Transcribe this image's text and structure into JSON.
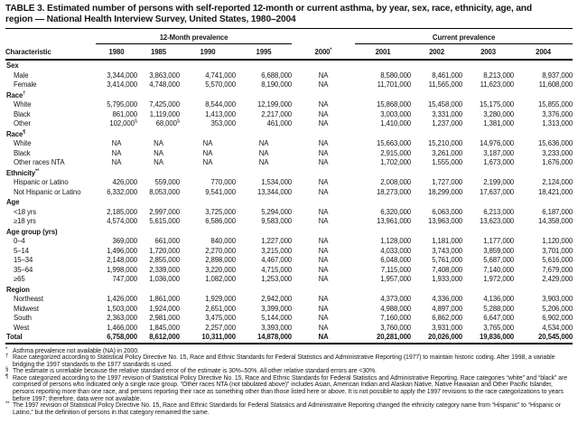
{
  "title": {
    "line1": "TABLE 3. Estimated number of persons with self-reported 12-month or current asthma, by year, sex, race, ethnicity, age, and",
    "line2": "region — National Health Interview Survey, United States, 1980–2004"
  },
  "table": {
    "characteristic_header": "Characteristic",
    "group_12month": "12-Month prevalence",
    "group_current": "Current prevalence",
    "year_headers": [
      {
        "label": "1980"
      },
      {
        "label": "1985"
      },
      {
        "label": "1990"
      },
      {
        "label": "1995"
      },
      {
        "label": "2000",
        "sup": "*"
      },
      {
        "label": "2001"
      },
      {
        "label": "2002"
      },
      {
        "label": "2003"
      },
      {
        "label": "2004"
      }
    ],
    "rows": [
      {
        "type": "group",
        "label": "Sex"
      },
      {
        "type": "data",
        "label": "Male",
        "values": [
          "3,344,000",
          "3,863,000",
          "4,741,000",
          "6,688,000",
          "NA",
          "8,580,000",
          "8,461,000",
          "8,213,000",
          "8,937,000"
        ]
      },
      {
        "type": "data",
        "label": "Female",
        "values": [
          "3,414,000",
          "4,748,000",
          "5,570,000",
          "8,190,000",
          "NA",
          "11,701,000",
          "11,565,000",
          "11,623,000",
          "11,608,000"
        ]
      },
      {
        "type": "group",
        "label": "Race",
        "sup": "†"
      },
      {
        "type": "data",
        "label": "White",
        "values": [
          "5,795,000",
          "7,425,000",
          "8,544,000",
          "12,199,000",
          "NA",
          "15,868,000",
          "15,458,000",
          "15,175,000",
          "15,855,000"
        ]
      },
      {
        "type": "data",
        "label": "Black",
        "values": [
          "861,000",
          "1,119,000",
          "1,413,000",
          "2,217,000",
          "NA",
          "3,003,000",
          "3,331,000",
          "3,280,000",
          "3,376,000"
        ]
      },
      {
        "type": "data",
        "label": "Other",
        "values": [
          "102,000§",
          "68,000§",
          "353,000",
          "461,000",
          "NA",
          "1,410,000",
          "1,237,000",
          "1,381,000",
          "1,313,000"
        ]
      },
      {
        "type": "group",
        "label": "Race",
        "sup": "¶"
      },
      {
        "type": "data",
        "label": "White",
        "values": [
          "NA",
          "NA",
          "NA",
          "NA",
          "NA",
          "15,663,000",
          "15,210,000",
          "14,976,000",
          "15,636,000"
        ]
      },
      {
        "type": "data",
        "label": "Black",
        "values": [
          "NA",
          "NA",
          "NA",
          "NA",
          "NA",
          "2,915,000",
          "3,261,000",
          "3,187,000",
          "3,233,000"
        ]
      },
      {
        "type": "data",
        "label": "Other races NTA",
        "values": [
          "NA",
          "NA",
          "NA",
          "NA",
          "NA",
          "1,702,000",
          "1,555,000",
          "1,673,000",
          "1,676,000"
        ]
      },
      {
        "type": "group",
        "label": "Ethnicity",
        "sup": "**"
      },
      {
        "type": "data",
        "label": "Hispanic or Latino",
        "values": [
          "426,000",
          "559,000",
          "770,000",
          "1,534,000",
          "NA",
          "2,008,000",
          "1,727,000",
          "2,199,000",
          "2,124,000"
        ]
      },
      {
        "type": "data",
        "label": "Not Hispanic or Latino",
        "values": [
          "6,332,000",
          "8,053,000",
          "9,541,000",
          "13,344,000",
          "NA",
          "18,273,000",
          "18,299,000",
          "17,637,000",
          "18,421,000"
        ]
      },
      {
        "type": "group",
        "label": "Age"
      },
      {
        "type": "data",
        "label": "<18 yrs",
        "values": [
          "2,185,000",
          "2,997,000",
          "3,725,000",
          "5,294,000",
          "NA",
          "6,320,000",
          "6,063,000",
          "6,213,000",
          "6,187,000"
        ]
      },
      {
        "type": "data",
        "label": "≥18 yrs",
        "values": [
          "4,574,000",
          "5,615,000",
          "6,586,000",
          "9,583,000",
          "NA",
          "13,961,000",
          "13,963,000",
          "13,623,000",
          "14,358,000"
        ]
      },
      {
        "type": "group",
        "label": "Age group (yrs)"
      },
      {
        "type": "data",
        "label": "0–4",
        "values": [
          "369,000",
          "661,000",
          "840,000",
          "1,227,000",
          "NA",
          "1,128,000",
          "1,181,000",
          "1,177,000",
          "1,120,000"
        ]
      },
      {
        "type": "data",
        "label": "5–14",
        "values": [
          "1,496,000",
          "1,720,000",
          "2,270,000",
          "3,215,000",
          "NA",
          "4,033,000",
          "3,743,000",
          "3,859,000",
          "3,701,000"
        ]
      },
      {
        "type": "data",
        "label": "15–34",
        "values": [
          "2,148,000",
          "2,855,000",
          "2,898,000",
          "4,467,000",
          "NA",
          "6,048,000",
          "5,761,000",
          "5,687,000",
          "5,616,000"
        ]
      },
      {
        "type": "data",
        "label": "35–64",
        "values": [
          "1,998,000",
          "2,339,000",
          "3,220,000",
          "4,715,000",
          "NA",
          "7,115,000",
          "7,408,000",
          "7,140,000",
          "7,679,000"
        ]
      },
      {
        "type": "data",
        "label": "≥65",
        "values": [
          "747,000",
          "1,036,000",
          "1,082,000",
          "1,253,000",
          "NA",
          "1,957,000",
          "1,933,000",
          "1,972,000",
          "2,429,000"
        ]
      },
      {
        "type": "group",
        "label": "Region"
      },
      {
        "type": "data",
        "label": "Northeast",
        "values": [
          "1,426,000",
          "1,861,000",
          "1,929,000",
          "2,942,000",
          "NA",
          "4,373,000",
          "4,336,000",
          "4,136,000",
          "3,903,000"
        ]
      },
      {
        "type": "data",
        "label": "Midwest",
        "values": [
          "1,503,000",
          "1,924,000",
          "2,651,000",
          "3,399,000",
          "NA",
          "4,988,000",
          "4,897,000",
          "5,288,000",
          "5,206,000"
        ]
      },
      {
        "type": "data",
        "label": "South",
        "values": [
          "2,363,000",
          "2,981,000",
          "3,475,000",
          "5,144,000",
          "NA",
          "7,160,000",
          "6,862,000",
          "6,647,000",
          "6,902,000"
        ]
      },
      {
        "type": "data",
        "label": "West",
        "values": [
          "1,466,000",
          "1,845,000",
          "2,257,000",
          "3,393,000",
          "NA",
          "3,760,000",
          "3,931,000",
          "3,765,000",
          "4,534,000"
        ]
      },
      {
        "type": "total",
        "label": "Total",
        "values": [
          "6,758,000",
          "8,612,000",
          "10,311,000",
          "14,878,000",
          "NA",
          "20,281,000",
          "20,026,000",
          "19,836,000",
          "20,545,000"
        ]
      }
    ]
  },
  "footnotes": [
    {
      "marker": "*",
      "text": "Asthma prevalence not available (NA) in 2000."
    },
    {
      "marker": "†",
      "text": "Race categorized according to Statistical Policy Directive No. 15, Race and Ethnic Standards for Federal Statistics and Administrative Reporting (1977) to maintain historic coding. After 1998, a variable bridging the 1997 standards to the 1977 standards is used."
    },
    {
      "marker": "§",
      "text": "The estimate is unreliable because the relative standard error of the estimate is 30%–50%. All other relative standard errors are <30%."
    },
    {
      "marker": "¶",
      "text": "Race categorized according to the 1997 revision of Statistical Policy Directive No. 15, Race and Ethnic Standards for Federal Statistics and Administrative Reporting. Race categories “white” and “black” are comprised of persons who indicated only a single race group. “Other races NTA (not tabulated above)” includes Asian, American Indian and Alaskan Native, Native Hawaiian and Other Pacific Islander, persons reporting more than one race, and persons reporting their race as something other than those listed here or above. It is not possible to apply the 1997 revisions to the race categorizations to years before 1997; therefore, data were not available."
    },
    {
      "marker": "**",
      "text": "The 1997 revision of Statistical Policy Directive No. 15, Race and Ethnic Standards for Federal Statistics and Administrative Reporting changed the ethnicity category name from “Hispanic” to “Hispanic or Latino,” but the definition of persons in that category remained the same."
    }
  ]
}
